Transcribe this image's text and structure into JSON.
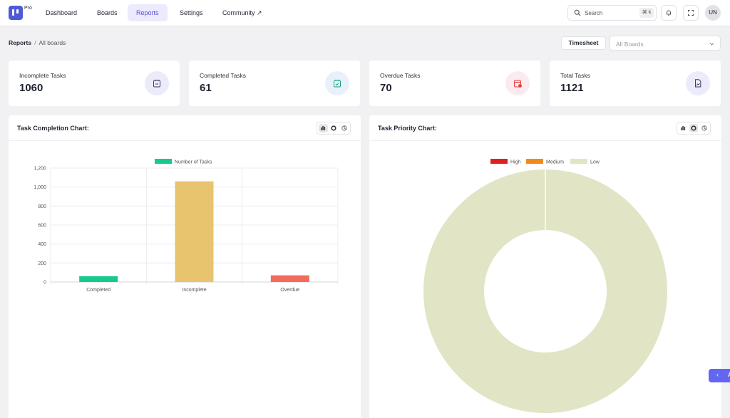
{
  "app": {
    "badge": "Pro",
    "brand_color": "#4f5bd5"
  },
  "nav": {
    "items": [
      {
        "label": "Dashboard",
        "active": false
      },
      {
        "label": "Boards",
        "active": false
      },
      {
        "label": "Reports",
        "active": true
      },
      {
        "label": "Settings",
        "active": false
      },
      {
        "label": "Community ↗",
        "active": false
      }
    ],
    "search_placeholder": "Search",
    "search_shortcut": "⌘ k",
    "avatar_initials": "UN"
  },
  "breadcrumb": {
    "root": "Reports",
    "separator": "/",
    "current": "All boards"
  },
  "toolbar": {
    "timesheet_label": "Timesheet",
    "board_select_value": "All Boards"
  },
  "stats": [
    {
      "label": "Incomplete Tasks",
      "value": "1060",
      "icon": "calendar-minus-icon",
      "color": "#4f5bd5"
    },
    {
      "label": "Completed Tasks",
      "value": "61",
      "icon": "calendar-check-icon",
      "color": "#14a37f"
    },
    {
      "label": "Overdue Tasks",
      "value": "70",
      "icon": "calendar-alert-icon",
      "color": "#e53935"
    },
    {
      "label": "Total Tasks",
      "value": "1121",
      "icon": "document-chart-icon",
      "color": "#4f5bd5"
    }
  ],
  "panels": {
    "completion_title": "Task Completion Chart:",
    "priority_title": "Task Priority Chart:"
  },
  "chart_data": [
    {
      "type": "bar",
      "title": "Task Completion Chart:",
      "categories": [
        "Completed",
        "Incomplete",
        "Overdue"
      ],
      "series": [
        {
          "name": "Number of Tasks",
          "values": [
            61,
            1060,
            70
          ],
          "colors": [
            "#16c98d",
            "#e8c46e",
            "#f26b5b"
          ]
        }
      ],
      "ylim": [
        0,
        1200
      ],
      "yticks": [
        "0",
        "200",
        "400",
        "600",
        "800",
        "1,000",
        "1,200"
      ],
      "grid": true,
      "legend": "top"
    },
    {
      "type": "pie",
      "title": "Task Priority Chart:",
      "variant": "doughnut",
      "categories": [
        "High",
        "Medium",
        "Low"
      ],
      "values": [
        0,
        0,
        100
      ],
      "colors": [
        "#e02020",
        "#f08a1c",
        "#e1e5c6"
      ],
      "legend": "top"
    }
  ]
}
